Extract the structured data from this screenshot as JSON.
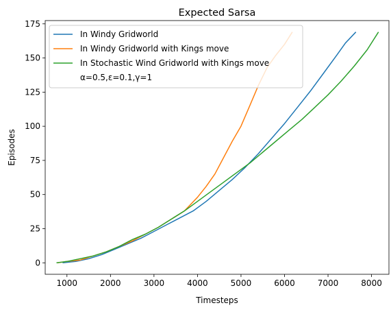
{
  "chart_data": {
    "type": "line",
    "title": "Expected Sarsa",
    "xlabel": "Timesteps",
    "ylabel": "Episodes",
    "xlim": [
      500,
      8400
    ],
    "ylim": [
      -8.4,
      177.4
    ],
    "xticks": [
      1000,
      2000,
      3000,
      4000,
      5000,
      6000,
      7000,
      8000
    ],
    "yticks": [
      0,
      25,
      50,
      75,
      100,
      125,
      150,
      175
    ],
    "grid": false,
    "legend_position": "top-left",
    "legend_note": "α=0.5,ε=0.1,γ=1",
    "series": [
      {
        "name": "In Windy Gridworld",
        "color": "#1f77b4",
        "points": [
          [
            900,
            0
          ],
          [
            1200,
            1
          ],
          [
            1500,
            3
          ],
          [
            1800,
            6
          ],
          [
            2100,
            10
          ],
          [
            2400,
            14
          ],
          [
            2700,
            18
          ],
          [
            3000,
            23
          ],
          [
            3300,
            28
          ],
          [
            3600,
            33
          ],
          [
            3900,
            38
          ],
          [
            4200,
            45
          ],
          [
            4500,
            53
          ],
          [
            4800,
            61
          ],
          [
            5100,
            70
          ],
          [
            5400,
            80
          ],
          [
            5700,
            91
          ],
          [
            6000,
            102
          ],
          [
            6300,
            114
          ],
          [
            6600,
            126
          ],
          [
            6900,
            139
          ],
          [
            7200,
            152
          ],
          [
            7400,
            161
          ],
          [
            7640,
            169
          ]
        ]
      },
      {
        "name": "In Windy Gridworld with Kings move",
        "color": "#ff7f0e",
        "points": [
          [
            780,
            0
          ],
          [
            1000,
            1
          ],
          [
            1300,
            2
          ],
          [
            1600,
            5
          ],
          [
            1900,
            8
          ],
          [
            2200,
            12
          ],
          [
            2500,
            16
          ],
          [
            2800,
            21
          ],
          [
            3100,
            26
          ],
          [
            3400,
            32
          ],
          [
            3700,
            38
          ],
          [
            4000,
            48
          ],
          [
            4200,
            56
          ],
          [
            4400,
            65
          ],
          [
            4600,
            77
          ],
          [
            4800,
            89
          ],
          [
            5000,
            100
          ],
          [
            5200,
            115
          ],
          [
            5400,
            130
          ],
          [
            5600,
            143
          ],
          [
            5800,
            152
          ],
          [
            6000,
            160
          ],
          [
            6180,
            169
          ]
        ]
      },
      {
        "name": "In Stochastic Wind Gridworld with Kings move",
        "color": "#2ca02c",
        "points": [
          [
            760,
            0
          ],
          [
            1000,
            1
          ],
          [
            1300,
            3
          ],
          [
            1600,
            5
          ],
          [
            1900,
            8
          ],
          [
            2200,
            12
          ],
          [
            2500,
            17
          ],
          [
            2800,
            21
          ],
          [
            3100,
            26
          ],
          [
            3400,
            32
          ],
          [
            3700,
            38
          ],
          [
            4000,
            45
          ],
          [
            4300,
            52
          ],
          [
            4600,
            59
          ],
          [
            4900,
            66
          ],
          [
            5200,
            73
          ],
          [
            5500,
            81
          ],
          [
            5800,
            89
          ],
          [
            6100,
            97
          ],
          [
            6400,
            105
          ],
          [
            6700,
            114
          ],
          [
            7000,
            123
          ],
          [
            7300,
            133
          ],
          [
            7600,
            144
          ],
          [
            7900,
            156
          ],
          [
            8160,
            169
          ]
        ]
      }
    ]
  }
}
